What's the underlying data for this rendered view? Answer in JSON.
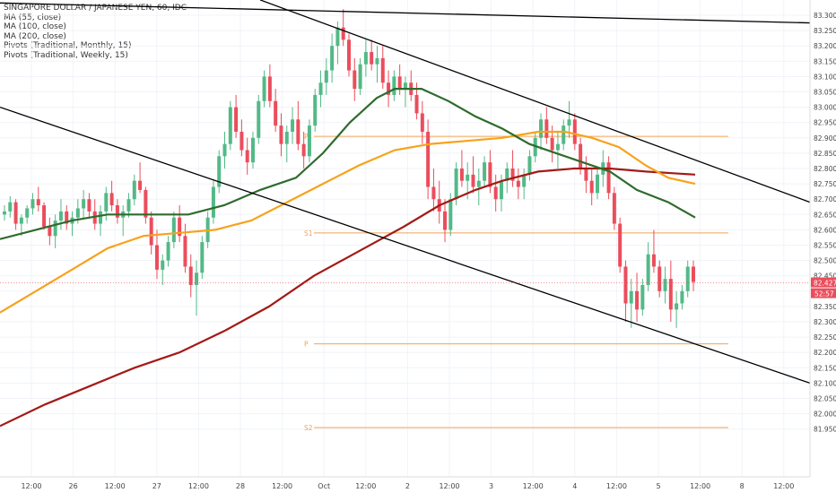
{
  "legend": {
    "title": "SINGAPORE DOLLAR / JAPANESE YEN, 60, IDC",
    "items": [
      "MA (55, close)",
      "MA (100, close)",
      "MA (200, close)",
      "Pivots (Traditional, Monthly, 15)",
      "Pivots (Traditional, Weekly, 15)"
    ]
  },
  "chart_data": {
    "type": "candlestick",
    "title": "SINGAPORE DOLLAR / JAPANESE YEN, 60, IDC",
    "ylim": [
      81.9,
      83.35
    ],
    "y_ticks": [
      "83.300",
      "83.250",
      "83.200",
      "83.150",
      "83.100",
      "83.050",
      "83.000",
      "82.950",
      "82.900",
      "82.850",
      "82.800",
      "82.750",
      "82.700",
      "82.650",
      "82.600",
      "82.550",
      "82.500",
      "82.450",
      "82.400",
      "82.350",
      "82.300",
      "82.250",
      "82.200",
      "82.150",
      "82.100",
      "82.050",
      "82.000",
      "81.950"
    ],
    "x_ticks": [
      "12:00",
      "26",
      "12:00",
      "27",
      "12:00",
      "28",
      "12:00",
      "Oct",
      "12:00",
      "2",
      "12:00",
      "3",
      "12:00",
      "4",
      "12:00",
      "5",
      "12:00",
      "8",
      "12:00"
    ],
    "last_price": "82.427",
    "countdown": "52:57",
    "colors": {
      "up": "#53b987",
      "down": "#eb4d5c",
      "ma55": "#2f6b2c",
      "ma100": "#f7a21b",
      "ma200": "#a31a16",
      "pivot": "#f0a254",
      "trend": "#000000",
      "price_label": "#eb4d5c"
    },
    "pivots": [
      {
        "label": "P",
        "value": 82.905
      },
      {
        "label": "S1",
        "value": 82.59
      },
      {
        "label": "P",
        "value": 82.228
      },
      {
        "label": "S2",
        "value": 81.955
      }
    ],
    "trendlines": [
      {
        "from": {
          "x": "Sep 25 00:00",
          "y": 83.34
        },
        "to": {
          "x": "Oct 5 22:00",
          "y": 83.275
        }
      },
      {
        "from": {
          "x": "Sep 25 00:00",
          "y": 83.0
        },
        "to": {
          "x": "Oct 5 22:00",
          "y": 82.1
        }
      },
      {
        "from": {
          "x": "Sep 28 09:00",
          "y": 83.35
        },
        "to": {
          "x": "Oct 5 22:00",
          "y": 82.69
        }
      }
    ],
    "ma55": [
      [
        0,
        82.57
      ],
      [
        40,
        82.6
      ],
      [
        80,
        82.63
      ],
      [
        120,
        82.65
      ],
      [
        170,
        82.65
      ],
      [
        210,
        82.65
      ],
      [
        250,
        82.68
      ],
      [
        290,
        82.73
      ],
      [
        330,
        82.77
      ],
      [
        360,
        82.85
      ],
      [
        390,
        82.95
      ],
      [
        420,
        83.03
      ],
      [
        440,
        83.06
      ],
      [
        470,
        83.06
      ],
      [
        500,
        83.02
      ],
      [
        530,
        82.97
      ],
      [
        560,
        82.93
      ],
      [
        590,
        82.88
      ],
      [
        620,
        82.85
      ],
      [
        650,
        82.82
      ],
      [
        680,
        82.79
      ],
      [
        710,
        82.73
      ],
      [
        745,
        82.69
      ],
      [
        775,
        82.64
      ]
    ],
    "ma100": [
      [
        0,
        82.33
      ],
      [
        40,
        82.4
      ],
      [
        80,
        82.47
      ],
      [
        120,
        82.54
      ],
      [
        160,
        82.58
      ],
      [
        200,
        82.59
      ],
      [
        240,
        82.6
      ],
      [
        280,
        82.63
      ],
      [
        320,
        82.69
      ],
      [
        360,
        82.75
      ],
      [
        400,
        82.81
      ],
      [
        440,
        82.86
      ],
      [
        480,
        82.88
      ],
      [
        520,
        82.89
      ],
      [
        560,
        82.9
      ],
      [
        600,
        82.92
      ],
      [
        630,
        82.92
      ],
      [
        660,
        82.9
      ],
      [
        690,
        82.87
      ],
      [
        720,
        82.81
      ],
      [
        745,
        82.77
      ],
      [
        775,
        82.75
      ]
    ],
    "ma200": [
      [
        0,
        81.96
      ],
      [
        50,
        82.03
      ],
      [
        100,
        82.09
      ],
      [
        150,
        82.15
      ],
      [
        200,
        82.2
      ],
      [
        250,
        82.27
      ],
      [
        300,
        82.35
      ],
      [
        350,
        82.45
      ],
      [
        400,
        82.53
      ],
      [
        450,
        82.61
      ],
      [
        490,
        82.68
      ],
      [
        530,
        82.73
      ],
      [
        560,
        82.76
      ],
      [
        600,
        82.79
      ],
      [
        640,
        82.8
      ],
      [
        680,
        82.8
      ],
      [
        720,
        82.79
      ],
      [
        775,
        82.78
      ]
    ],
    "candles": [
      [
        82.65,
        82.68,
        82.63,
        82.66
      ],
      [
        82.66,
        82.71,
        82.64,
        82.69
      ],
      [
        82.69,
        82.7,
        82.6,
        82.62
      ],
      [
        82.62,
        82.65,
        82.58,
        82.64
      ],
      [
        82.64,
        82.68,
        82.62,
        82.67
      ],
      [
        82.67,
        82.72,
        82.65,
        82.7
      ],
      [
        82.7,
        82.74,
        82.66,
        82.68
      ],
      [
        82.68,
        82.69,
        82.6,
        82.61
      ],
      [
        82.61,
        82.64,
        82.55,
        82.58
      ],
      [
        82.58,
        82.65,
        82.54,
        82.63
      ],
      [
        82.63,
        82.7,
        82.6,
        82.66
      ],
      [
        82.66,
        82.68,
        82.6,
        82.62
      ],
      [
        82.62,
        82.66,
        82.58,
        82.64
      ],
      [
        82.64,
        82.7,
        82.62,
        82.67
      ],
      [
        82.67,
        82.73,
        82.64,
        82.7
      ],
      [
        82.7,
        82.72,
        82.64,
        82.66
      ],
      [
        82.66,
        82.7,
        82.6,
        82.62
      ],
      [
        82.62,
        82.68,
        82.58,
        82.66
      ],
      [
        82.66,
        82.74,
        82.63,
        82.72
      ],
      [
        82.72,
        82.76,
        82.66,
        82.68
      ],
      [
        82.68,
        82.7,
        82.62,
        82.64
      ],
      [
        82.64,
        82.68,
        82.58,
        82.66
      ],
      [
        82.66,
        82.72,
        82.64,
        82.7
      ],
      [
        82.7,
        82.78,
        82.68,
        82.76
      ],
      [
        82.76,
        82.82,
        82.72,
        82.73
      ],
      [
        82.73,
        82.74,
        82.62,
        82.64
      ],
      [
        82.64,
        82.66,
        82.52,
        82.55
      ],
      [
        82.55,
        82.6,
        82.44,
        82.47
      ],
      [
        82.47,
        82.52,
        82.42,
        82.5
      ],
      [
        82.5,
        82.58,
        82.48,
        82.56
      ],
      [
        82.56,
        82.66,
        82.54,
        82.64
      ],
      [
        82.64,
        82.68,
        82.56,
        82.58
      ],
      [
        82.58,
        82.62,
        82.46,
        82.48
      ],
      [
        82.48,
        82.52,
        82.38,
        82.42
      ],
      [
        82.42,
        82.5,
        82.32,
        82.46
      ],
      [
        82.46,
        82.58,
        82.44,
        82.56
      ],
      [
        82.56,
        82.66,
        82.54,
        82.64
      ],
      [
        82.64,
        82.76,
        82.62,
        82.74
      ],
      [
        82.74,
        82.86,
        82.72,
        82.84
      ],
      [
        82.84,
        82.92,
        82.8,
        82.88
      ],
      [
        82.88,
        83.02,
        82.86,
        83.0
      ],
      [
        83.0,
        83.04,
        82.9,
        82.92
      ],
      [
        82.92,
        82.96,
        82.84,
        82.86
      ],
      [
        82.86,
        82.9,
        82.78,
        82.82
      ],
      [
        82.82,
        82.92,
        82.8,
        82.9
      ],
      [
        82.9,
        83.04,
        82.88,
        83.02
      ],
      [
        83.02,
        83.12,
        83.0,
        83.1
      ],
      [
        83.1,
        83.14,
        83.0,
        83.02
      ],
      [
        83.02,
        83.06,
        82.92,
        82.94
      ],
      [
        82.94,
        82.98,
        82.84,
        82.88
      ],
      [
        82.88,
        82.94,
        82.82,
        82.92
      ],
      [
        82.92,
        83.0,
        82.88,
        82.96
      ],
      [
        82.96,
        83.02,
        82.86,
        82.88
      ],
      [
        82.88,
        82.92,
        82.8,
        82.84
      ],
      [
        82.84,
        82.96,
        82.82,
        82.94
      ],
      [
        82.94,
        83.06,
        82.92,
        83.04
      ],
      [
        83.04,
        83.12,
        83.0,
        83.08
      ],
      [
        83.08,
        83.16,
        83.04,
        83.12
      ],
      [
        83.12,
        83.24,
        83.08,
        83.2
      ],
      [
        83.2,
        83.28,
        83.14,
        83.26
      ],
      [
        83.26,
        83.32,
        83.2,
        83.22
      ],
      [
        83.22,
        83.24,
        83.1,
        83.12
      ],
      [
        83.12,
        83.16,
        83.02,
        83.06
      ],
      [
        83.06,
        83.16,
        83.04,
        83.14
      ],
      [
        83.14,
        83.22,
        83.1,
        83.18
      ],
      [
        83.18,
        83.22,
        83.12,
        83.14
      ],
      [
        83.14,
        83.2,
        83.08,
        83.16
      ],
      [
        83.16,
        83.2,
        83.06,
        83.08
      ],
      [
        83.08,
        83.12,
        83.0,
        83.04
      ],
      [
        83.04,
        83.12,
        83.02,
        83.1
      ],
      [
        83.1,
        83.14,
        83.04,
        83.06
      ],
      [
        83.06,
        83.1,
        83.0,
        83.08
      ],
      [
        83.08,
        83.12,
        83.02,
        83.04
      ],
      [
        83.04,
        83.08,
        82.96,
        82.98
      ],
      [
        82.98,
        83.02,
        82.88,
        82.92
      ],
      [
        82.92,
        82.96,
        82.7,
        82.74
      ],
      [
        82.74,
        82.8,
        82.66,
        82.7
      ],
      [
        82.7,
        82.76,
        82.62,
        82.66
      ],
      [
        82.66,
        82.7,
        82.56,
        82.6
      ],
      [
        82.6,
        82.72,
        82.58,
        82.7
      ],
      [
        82.7,
        82.82,
        82.68,
        82.8
      ],
      [
        82.8,
        82.86,
        82.74,
        82.76
      ],
      [
        82.76,
        82.82,
        82.7,
        82.78
      ],
      [
        82.78,
        82.84,
        82.72,
        82.74
      ],
      [
        82.74,
        82.8,
        82.68,
        82.76
      ],
      [
        82.76,
        82.84,
        82.74,
        82.82
      ],
      [
        82.82,
        82.86,
        82.72,
        82.74
      ],
      [
        82.74,
        82.78,
        82.66,
        82.7
      ],
      [
        82.7,
        82.78,
        82.66,
        82.76
      ],
      [
        82.76,
        82.82,
        82.72,
        82.8
      ],
      [
        82.8,
        82.86,
        82.74,
        82.76
      ],
      [
        82.76,
        82.8,
        82.7,
        82.74
      ],
      [
        82.74,
        82.8,
        82.7,
        82.78
      ],
      [
        82.78,
        82.86,
        82.76,
        82.84
      ],
      [
        82.84,
        82.92,
        82.82,
        82.9
      ],
      [
        82.9,
        82.98,
        82.86,
        82.96
      ],
      [
        82.96,
        83.0,
        82.88,
        82.9
      ],
      [
        82.9,
        82.94,
        82.82,
        82.86
      ],
      [
        82.86,
        82.92,
        82.8,
        82.88
      ],
      [
        82.88,
        82.96,
        82.86,
        82.94
      ],
      [
        82.94,
        83.02,
        82.9,
        82.96
      ],
      [
        82.96,
        82.98,
        82.86,
        82.88
      ],
      [
        82.88,
        82.9,
        82.78,
        82.8
      ],
      [
        82.8,
        82.84,
        82.72,
        82.76
      ],
      [
        82.76,
        82.8,
        82.68,
        82.72
      ],
      [
        82.72,
        82.8,
        82.7,
        82.78
      ],
      [
        82.78,
        82.86,
        82.74,
        82.82
      ],
      [
        82.82,
        82.84,
        82.7,
        82.72
      ],
      [
        82.72,
        82.74,
        82.6,
        82.62
      ],
      [
        82.62,
        82.64,
        82.46,
        82.48
      ],
      [
        82.48,
        82.5,
        82.3,
        82.36
      ],
      [
        82.36,
        82.44,
        82.28,
        82.4
      ],
      [
        82.4,
        82.46,
        82.3,
        82.34
      ],
      [
        82.34,
        82.44,
        82.32,
        82.42
      ],
      [
        82.42,
        82.56,
        82.4,
        82.52
      ],
      [
        82.52,
        82.6,
        82.46,
        82.48
      ],
      [
        82.48,
        82.5,
        82.38,
        82.4
      ],
      [
        82.4,
        82.48,
        82.36,
        82.44
      ],
      [
        82.44,
        82.5,
        82.3,
        82.34
      ],
      [
        82.34,
        82.4,
        82.28,
        82.36
      ],
      [
        82.36,
        82.42,
        82.34,
        82.4
      ],
      [
        82.4,
        82.5,
        82.38,
        82.48
      ],
      [
        82.48,
        82.5,
        82.4,
        82.43
      ]
    ]
  }
}
